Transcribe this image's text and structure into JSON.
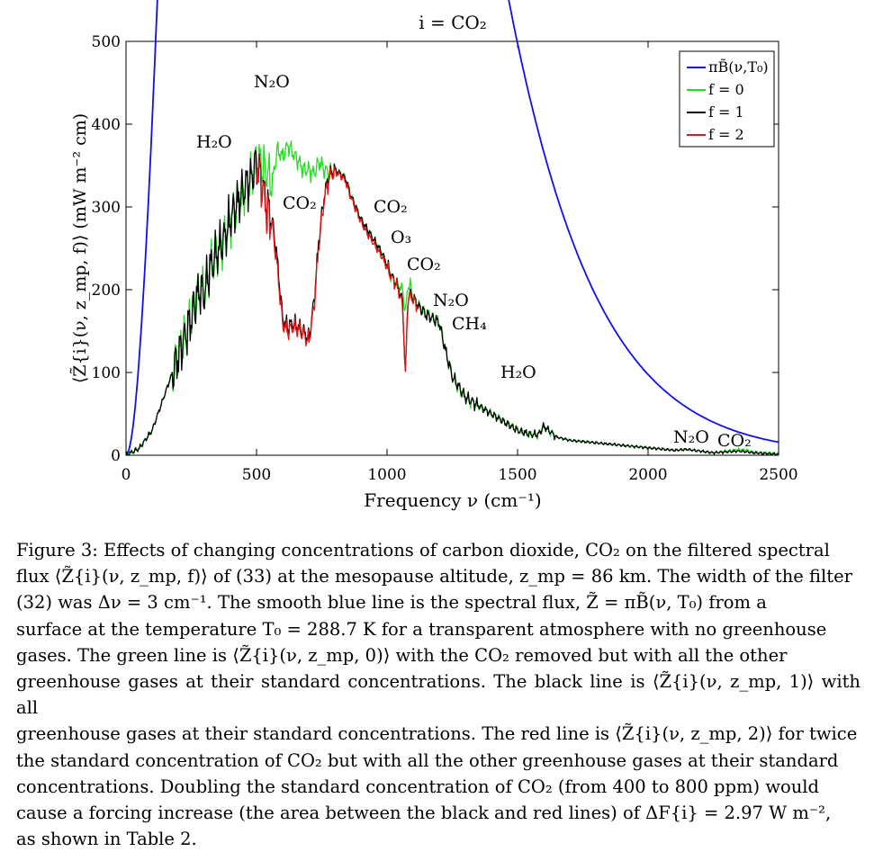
{
  "chart_data": {
    "type": "line",
    "title": "i = CO₂",
    "xlabel": "Frequency ν (cm⁻¹)",
    "ylabel": "⟨Z̃{i}(ν, z_mp, f)⟩ (mW m⁻² cm)",
    "xlim": [
      0,
      2500
    ],
    "ylim": [
      0,
      500
    ],
    "xticks": [
      0,
      500,
      1000,
      1500,
      2000,
      2500
    ],
    "yticks": [
      0,
      100,
      200,
      300,
      400,
      500
    ],
    "grid": false,
    "legend_position": "top-right",
    "legend": [
      "πB̃(ν,T₀)",
      "f = 0",
      "f = 1",
      "f = 2"
    ],
    "series": [
      {
        "name": "πB̃(ν,T₀)",
        "color": "#1010ee",
        "source": "planck",
        "T0": 288.7
      },
      {
        "name": "f = 0",
        "color": "#22dd22",
        "x": [
          0,
          50,
          100,
          150,
          200,
          250,
          280,
          300,
          320,
          350,
          380,
          400,
          420,
          450,
          480,
          500,
          520,
          540,
          560,
          580,
          600,
          620,
          640,
          660,
          680,
          700,
          720,
          740,
          760,
          780,
          800,
          820,
          840,
          860,
          880,
          900,
          920,
          940,
          960,
          980,
          1000,
          1020,
          1040,
          1060,
          1070,
          1080,
          1090,
          1100,
          1120,
          1150,
          1200,
          1225,
          1250,
          1280,
          1300,
          1350,
          1400,
          1450,
          1500,
          1550,
          1580,
          1600,
          1650,
          1700,
          1800,
          1900,
          2000,
          2100,
          2150,
          2200,
          2250,
          2300,
          2350,
          2380,
          2400,
          2450,
          2500
        ],
        "y": [
          0,
          8,
          30,
          75,
          120,
          165,
          200,
          195,
          225,
          245,
          265,
          285,
          300,
          320,
          335,
          355,
          350,
          340,
          330,
          370,
          360,
          375,
          365,
          355,
          345,
          345,
          340,
          355,
          345,
          340,
          345,
          340,
          335,
          315,
          300,
          285,
          275,
          265,
          255,
          245,
          230,
          215,
          205,
          200,
          170,
          205,
          205,
          190,
          180,
          170,
          160,
          125,
          95,
          80,
          70,
          60,
          50,
          40,
          30,
          25,
          25,
          35,
          22,
          18,
          15,
          12,
          9,
          6,
          7,
          5,
          3,
          5,
          7,
          6,
          4,
          3,
          2
        ]
      },
      {
        "name": "f = 1",
        "color": "#000000",
        "x": [
          0,
          50,
          100,
          150,
          200,
          250,
          280,
          300,
          320,
          350,
          380,
          400,
          420,
          450,
          480,
          500,
          520,
          540,
          560,
          580,
          600,
          620,
          640,
          660,
          680,
          700,
          720,
          740,
          760,
          780,
          800,
          820,
          840,
          860,
          880,
          900,
          920,
          940,
          960,
          980,
          1000,
          1020,
          1040,
          1060,
          1070,
          1080,
          1090,
          1100,
          1120,
          1150,
          1200,
          1225,
          1250,
          1280,
          1300,
          1350,
          1400,
          1450,
          1500,
          1550,
          1580,
          1600,
          1650,
          1700,
          1800,
          1900,
          2000,
          2100,
          2150,
          2200,
          2250,
          2300,
          2350,
          2380,
          2400,
          2450,
          2500
        ],
        "y": [
          0,
          8,
          30,
          75,
          120,
          165,
          200,
          195,
          225,
          245,
          265,
          285,
          300,
          320,
          335,
          355,
          330,
          300,
          285,
          235,
          165,
          155,
          160,
          155,
          150,
          140,
          185,
          265,
          315,
          340,
          345,
          340,
          335,
          315,
          300,
          285,
          275,
          265,
          255,
          245,
          230,
          215,
          205,
          185,
          95,
          190,
          195,
          190,
          180,
          170,
          160,
          125,
          95,
          80,
          70,
          60,
          50,
          40,
          30,
          25,
          25,
          35,
          22,
          18,
          15,
          12,
          9,
          6,
          7,
          5,
          3,
          4,
          5,
          4,
          3,
          2,
          1
        ]
      },
      {
        "name": "f = 2",
        "color": "#ee1111",
        "x": [
          500,
          520,
          540,
          560,
          580,
          600,
          620,
          640,
          660,
          680,
          700,
          720,
          740,
          760,
          780,
          800,
          820,
          840,
          860,
          880,
          900,
          920,
          940,
          960,
          980,
          1000,
          1020,
          1040,
          1060,
          1070,
          1080,
          1090,
          1100,
          1120
        ],
        "y": [
          355,
          325,
          295,
          280,
          225,
          158,
          150,
          155,
          152,
          147,
          136,
          178,
          258,
          310,
          337,
          343,
          338,
          332,
          312,
          297,
          282,
          270,
          260,
          250,
          240,
          226,
          213,
          203,
          180,
          95,
          188,
          192,
          188,
          178
        ]
      }
    ],
    "annotations": [
      "N₂O",
      "H₂O",
      "CO₂",
      "CO₂",
      "O₃",
      "CO₂",
      "N₂O",
      "CH₄",
      "H₂O",
      "N₂O",
      "CO₂"
    ]
  },
  "caption": {
    "lines": [
      "Figure 3: Effects of changing concentrations of carbon dioxide, CO₂ on the filtered spectral",
      "flux ⟨Z̃{i}(ν, z_mp, f)⟩ of (33) at the mesopause altitude, z_mp = 86 km. The width of the filter",
      "(32) was Δν = 3 cm⁻¹. The smooth blue line is the spectral flux, Z̃ = πB̃(ν, T₀) from a",
      "surface at the temperature T₀ = 288.7 K for a transparent atmosphere with no greenhouse",
      "gases. The green line is ⟨Z̃{i}(ν, z_mp, 0)⟩ with the CO₂ removed but with all the other",
      "greenhouse gases at their standard concentrations. The black line is ⟨Z̃{i}(ν, z_mp, 1)⟩ with all",
      "greenhouse gases at their standard concentrations. The red line is ⟨Z̃{i}(ν, z_mp, 2)⟩ for twice",
      "the standard concentration of CO₂ but with all the other greenhouse gases at their standard",
      "concentrations. Doubling the standard concentration of CO₂ (from 400 to 800 ppm) would",
      "cause a forcing increase (the area between the black and red lines) of ΔF{i} = 2.97 W m⁻²,",
      "as shown in Table 2."
    ]
  }
}
